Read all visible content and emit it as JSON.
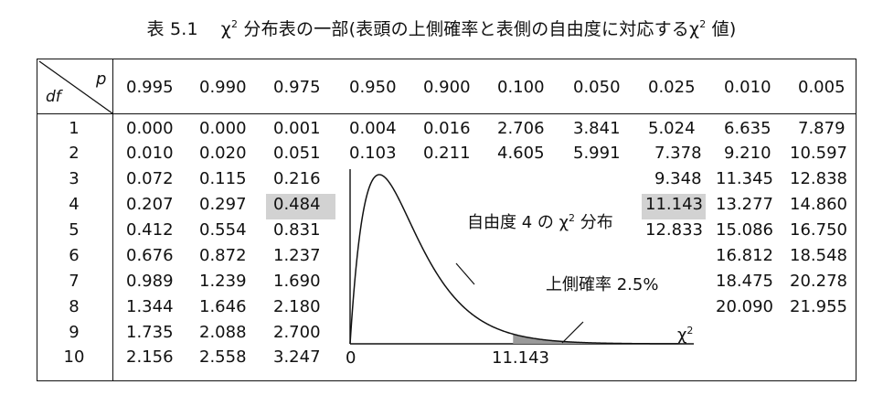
{
  "caption": {
    "label": "表 5.1",
    "chi": "χ",
    "sup": "2",
    "text": "分布表の一部(表頭の上側確率と表側の自由度に対応する",
    "chi2": "χ",
    "sup2": "2",
    "end": "値)"
  },
  "corner": {
    "p": "p",
    "df": "df"
  },
  "columns": [
    "0.995",
    "0.990",
    "0.975",
    "0.950",
    "0.900",
    "0.100",
    "0.050",
    "0.025",
    "0.010",
    "0.005"
  ],
  "df": [
    "1",
    "2",
    "3",
    "4",
    "5",
    "6",
    "7",
    "8",
    "9",
    "10"
  ],
  "rows": {
    "r1": [
      "0.000",
      "0.000",
      "0.001",
      "0.004",
      "0.016",
      "2.706",
      "3.841",
      "5.024",
      "6.635",
      "7.879"
    ],
    "r2": [
      "0.010",
      "0.020",
      "0.051",
      "0.103",
      "0.211",
      "4.605",
      "5.991",
      "7.378",
      "9.210",
      "10.597"
    ],
    "r3": [
      "0.072",
      "0.115",
      "0.216",
      "9.348",
      "11.345",
      "12.838"
    ],
    "r4": [
      "0.207",
      "0.297",
      "0.484",
      "11.143",
      "13.277",
      "14.860"
    ],
    "r5": [
      "0.412",
      "0.554",
      "0.831",
      "12.833",
      "15.086",
      "16.750"
    ],
    "r6": [
      "0.676",
      "0.872",
      "1.237",
      "16.812",
      "18.548"
    ],
    "r7": [
      "0.989",
      "1.239",
      "1.690",
      "18.475",
      "20.278"
    ],
    "r8": [
      "1.344",
      "1.646",
      "2.180",
      "20.090",
      "21.955"
    ],
    "r9": [
      "1.735",
      "2.088",
      "2.700"
    ],
    "r10": [
      "2.156",
      "2.558",
      "3.247"
    ]
  },
  "highlight_color": "#d2d2d2",
  "tail_color": "#9a9a9a",
  "inset": {
    "curve_label_a": "自由度 4 の",
    "curve_label_chi": "χ",
    "curve_label_sup": "2",
    "curve_label_b": "分布",
    "tail_label": "上側確率 2.5%",
    "origin": "0",
    "crit": "11.143",
    "axis_chi": "χ",
    "axis_sup": "2"
  }
}
